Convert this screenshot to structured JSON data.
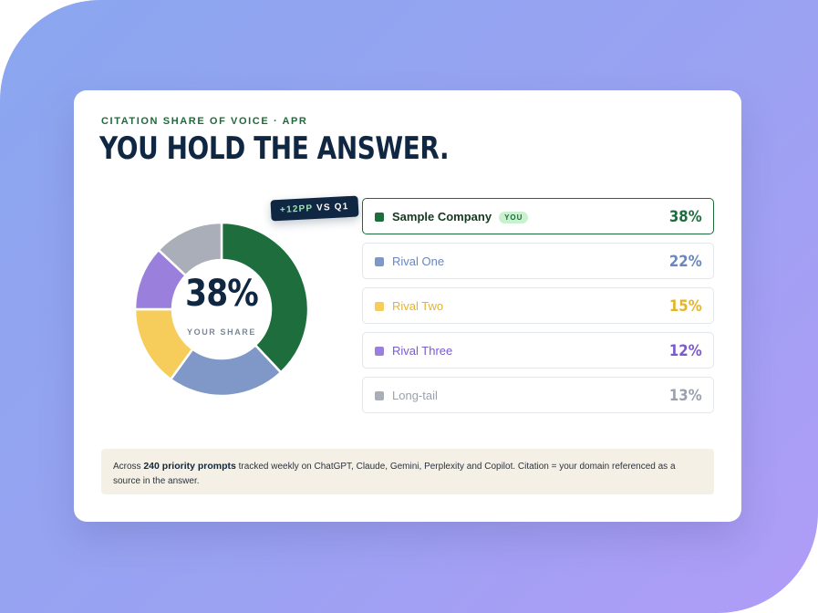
{
  "card": {
    "eyebrow": "CITATION SHARE OF VOICE · APR",
    "headline": "YOU HOLD THE ANSWER.",
    "center_value": "38%",
    "center_label": "YOUR SHARE",
    "delta": {
      "value": "+12PP",
      "suffix": " VS Q1"
    },
    "you_badge": "YOU",
    "note": {
      "prefix": "Across ",
      "highlight": "240 priority prompts",
      "suffix": " tracked weekly on ChatGPT, Claude, Gemini, Perplexity and Copilot. Citation = your domain referenced as a source in the answer."
    }
  },
  "chart_data": {
    "type": "pie",
    "title": "",
    "categories": [
      "Sample Company",
      "Rival One",
      "Rival Two",
      "Rival Three",
      "Long-tail"
    ],
    "values": [
      38,
      22,
      15,
      12,
      13
    ],
    "labels": [
      "38%",
      "22%",
      "15%",
      "12%",
      "13%"
    ],
    "colors": [
      "#1e6e3d",
      "#7f98c7",
      "#f6cd5b",
      "#9b7fdc",
      "#a9aeb8"
    ],
    "text_colors": [
      "#1e6e3d",
      "#6a86bd",
      "#e4b52a",
      "#7a5bc9",
      "#9aa1ad"
    ],
    "highlight_index": 0,
    "legend_position": "right"
  }
}
